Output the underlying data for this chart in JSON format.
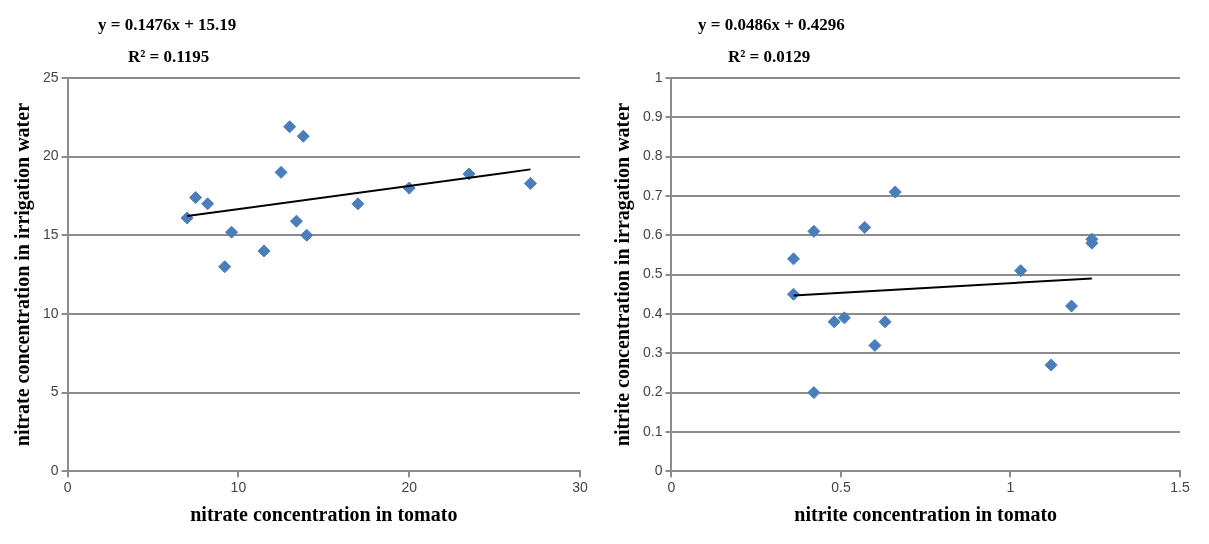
{
  "chart_data": [
    {
      "type": "scatter",
      "xlabel": "nitrate concentration in tomato",
      "ylabel": "nitrate concentration in irrigation water",
      "annotations": [
        "y = 0.1476x + 15.19",
        "R² = 0.1195"
      ],
      "xlim": [
        0,
        30
      ],
      "xticks": [
        0,
        10,
        20,
        30
      ],
      "ylim": [
        0,
        25
      ],
      "yticks": [
        0,
        5,
        10,
        15,
        20,
        25
      ],
      "grid": "y",
      "marker": "diamond",
      "series": [
        {
          "type": "scatter",
          "color": "#4a7ebb",
          "x": [
            7,
            7.5,
            8.2,
            9.2,
            9.6,
            11.5,
            12.5,
            13,
            13.4,
            13.8,
            14,
            17,
            20,
            23.5,
            27.1
          ],
          "values": [
            16.1,
            17.4,
            17,
            13,
            15.2,
            14,
            19,
            21.9,
            15.9,
            21.3,
            15,
            17,
            18,
            18.9,
            18.3
          ]
        },
        {
          "type": "line",
          "color": "#000000",
          "marker": "none",
          "line_style": "solid",
          "x": [
            7,
            27.1
          ],
          "values": [
            16.22,
            19.19
          ]
        }
      ]
    },
    {
      "type": "scatter",
      "xlabel": "nitrite concentration in tomato",
      "ylabel": "nitrite concentration in irragation water",
      "annotations": [
        "y = 0.0486x + 0.4296",
        "R² = 0.0129"
      ],
      "xlim": [
        0,
        1.5
      ],
      "xticks": [
        0,
        0.5,
        1,
        1.5
      ],
      "ylim": [
        0,
        1
      ],
      "yticks": [
        0,
        0.1,
        0.2,
        0.3,
        0.4,
        0.5,
        0.6,
        0.7,
        0.8,
        0.9,
        1
      ],
      "grid": "y",
      "marker": "diamond",
      "series": [
        {
          "type": "scatter",
          "color": "#4a7ebb",
          "x": [
            0.36,
            0.36,
            0.42,
            0.42,
            0.48,
            0.51,
            0.57,
            0.6,
            0.63,
            0.66,
            1.03,
            1.12,
            1.18,
            1.24,
            1.24
          ],
          "values": [
            0.54,
            0.45,
            0.61,
            0.2,
            0.38,
            0.39,
            0.62,
            0.32,
            0.38,
            0.71,
            0.51,
            0.27,
            0.42,
            0.59,
            0.58
          ]
        },
        {
          "type": "line",
          "color": "#000000",
          "marker": "none",
          "line_style": "solid",
          "x": [
            0.36,
            1.24
          ],
          "values": [
            0.447,
            0.49
          ]
        }
      ]
    }
  ]
}
